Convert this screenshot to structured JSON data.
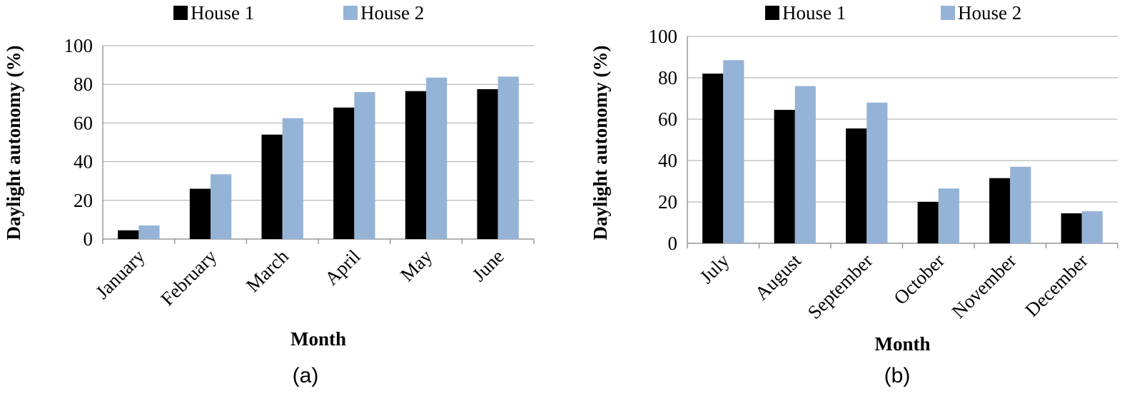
{
  "chart_data": [
    {
      "type": "bar",
      "panel_label": "(a)",
      "categories": [
        "January",
        "February",
        "March",
        "April",
        "May",
        "June"
      ],
      "series": [
        {
          "name": "House 1",
          "values": [
            4.5,
            26,
            54,
            68,
            76.5,
            77.5
          ]
        },
        {
          "name": "House 2",
          "values": [
            7,
            33.5,
            62.5,
            76,
            83.5,
            84
          ]
        }
      ],
      "xlabel": "Month",
      "ylabel": "Daylight autonomy (%)",
      "ylim": [
        0,
        100
      ],
      "yticks": [
        0,
        20,
        40,
        60,
        80,
        100
      ],
      "grid": true,
      "legend_position": "top"
    },
    {
      "type": "bar",
      "panel_label": "(b)",
      "categories": [
        "July",
        "August",
        "September",
        "October",
        "November",
        "December"
      ],
      "series": [
        {
          "name": "House 1",
          "values": [
            82,
            64.5,
            55.5,
            20,
            31.5,
            14.5
          ]
        },
        {
          "name": "House 2",
          "values": [
            88.5,
            76,
            68,
            26.5,
            37,
            15.5
          ]
        }
      ],
      "xlabel": "Month",
      "ylabel": "Daylight autonomy (%)",
      "ylim": [
        0,
        100
      ],
      "yticks": [
        0,
        20,
        40,
        60,
        80,
        100
      ],
      "grid": true,
      "legend_position": "top"
    }
  ],
  "colors": {
    "house1": "#000000",
    "house2": "#95b3d7",
    "grid": "#a6a6a6",
    "axis": "#808080"
  }
}
